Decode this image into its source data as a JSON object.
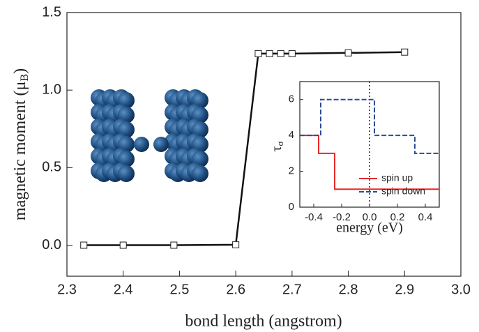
{
  "chart_data": [
    {
      "type": "line",
      "xlabel": "bond length (angstrom)",
      "ylabel": [
        "magnetic moment (μ",
        "B",
        ")"
      ],
      "x": [
        2.33,
        2.4,
        2.49,
        2.6,
        2.64,
        2.66,
        2.68,
        2.7,
        2.8,
        2.9
      ],
      "series": [
        {
          "color": "#111111",
          "values": [
            0.0,
            0.0,
            0.0,
            0.003,
            1.235,
            1.235,
            1.235,
            1.235,
            1.24,
            1.245
          ]
        }
      ],
      "xlim": [
        2.3,
        3.0
      ],
      "xticks": [
        2.3,
        2.4,
        2.5,
        2.6,
        2.7,
        2.8,
        2.9,
        {
          "value": 3.0,
          "label": "3.0"
        }
      ],
      "ylim": [
        -0.2,
        1.5
      ],
      "yticks": [
        {
          "value": 0,
          "label": "0.0"
        },
        {
          "value": 0.5,
          "label": "0.5"
        },
        {
          "value": 1,
          "label": "1.0"
        },
        {
          "value": 1.5,
          "label": "1.5"
        }
      ]
    },
    {
      "type": "line",
      "xlabel": "energy (eV)",
      "ylabel": [
        "τ",
        "σ"
      ],
      "series": [
        {
          "name": "spin up",
          "color": "#e8292b",
          "x": [
            -0.5,
            -0.365,
            -0.365,
            -0.25,
            -0.25,
            0.5
          ],
          "values": [
            4,
            4,
            3,
            3,
            1,
            1
          ]
        },
        {
          "name": "spin down",
          "color": "#2b4a9a",
          "dash": true,
          "x": [
            -0.5,
            -0.35,
            -0.35,
            0.035,
            0.035,
            0.325,
            0.325,
            0.5
          ],
          "values": [
            4,
            4,
            6,
            6,
            4,
            4,
            3,
            3
          ]
        }
      ],
      "xlim": [
        -0.5,
        0.5
      ],
      "xticks": [
        -0.4,
        -0.2,
        {
          "value": 0,
          "label": "0.0"
        },
        0.2,
        0.4
      ],
      "ylim": [
        0,
        7
      ],
      "yticks": [
        0,
        2,
        4,
        6
      ],
      "vline": 0,
      "legend": "lower right"
    }
  ]
}
